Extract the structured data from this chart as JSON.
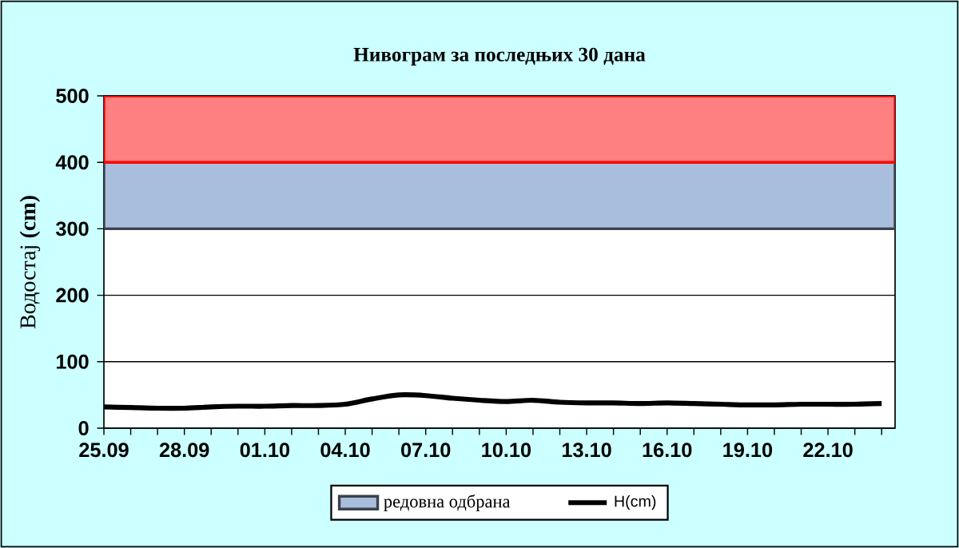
{
  "chart_data": {
    "type": "line",
    "title": "Нивограм за последњих 30 дана",
    "ylabel": "Водостај **(cm)**",
    "categories": [
      "25.09",
      null,
      null,
      "28.09",
      null,
      null,
      "01.10",
      null,
      null,
      "04.10",
      null,
      null,
      "07.10",
      null,
      null,
      "10.10",
      null,
      null,
      "13.10",
      null,
      null,
      "16.10",
      null,
      null,
      "19.10",
      null,
      null,
      "22.10",
      null,
      null
    ],
    "series": [
      {
        "name": "H(cm)",
        "color": "#000000",
        "values": [
          32,
          31,
          30,
          30,
          32,
          33,
          33,
          34,
          34,
          36,
          44,
          50,
          49,
          45,
          42,
          40,
          42,
          39,
          38,
          38,
          37,
          38,
          37,
          36,
          35,
          35,
          36,
          36,
          36,
          37
        ]
      }
    ],
    "ylim": [
      0,
      500
    ],
    "yticks": [
      0,
      100,
      200,
      300,
      400,
      500
    ],
    "grid": "y",
    "legend": "bottom",
    "bands": [
      {
        "axis": "y",
        "from": 300,
        "to": 400,
        "label": "редовна одбрана",
        "color": "#a9bedc"
      },
      {
        "axis": "y",
        "from": 400,
        "to": 500,
        "color": "#ff8080"
      }
    ]
  }
}
